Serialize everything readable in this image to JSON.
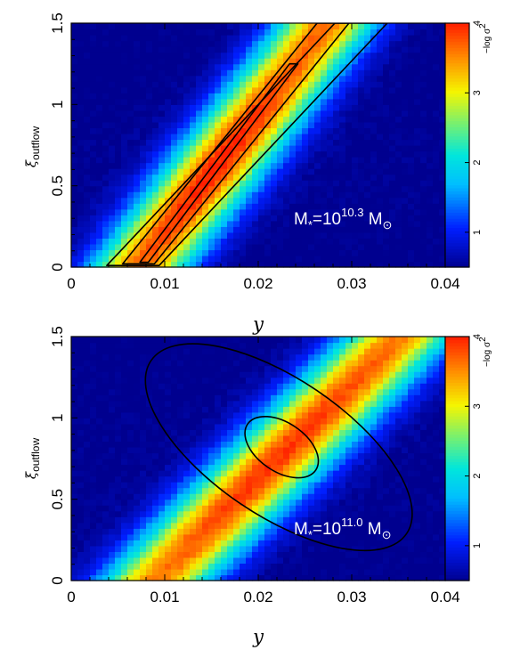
{
  "chart_data": [
    {
      "type": "heatmap",
      "xlabel": "y",
      "ylabel": "ξ",
      "ylabel_sub": "outflow",
      "xlim": [
        0,
        0.04
      ],
      "ylim": [
        0,
        1.5
      ],
      "x_ticks": [
        "0",
        "0.01",
        "0.02",
        "0.03",
        "0.04"
      ],
      "y_ticks": [
        "0",
        "0.5",
        "1",
        "1.5"
      ],
      "ridge": {
        "points": [
          [
            0.0075,
            0.02
          ],
          [
            0.024,
            1.25
          ]
        ],
        "width_x": 0.004,
        "peak": 4.0
      },
      "contours": [
        {
          "points": [
            [
              0.0078,
              0.03
            ],
            [
              0.0238,
              1.25
            ]
          ],
          "half_width_x": 0.00045
        },
        {
          "points": [
            [
              0.0072,
              0.02
            ],
            [
              0.028,
              1.5
            ]
          ],
          "half_width_x": 0.0017
        },
        {
          "points": [
            [
              0.0066,
              0.01
            ],
            [
              0.031,
              1.5
            ]
          ],
          "half_width_x": 0.0028
        }
      ],
      "annotation": {
        "prefix": "M",
        "sub": "*",
        "mid": "=10",
        "exp": "10.3",
        "unit": " M",
        "sun": "⊙"
      },
      "colorbar": {
        "title": "−log σ",
        "title_exp": "2",
        "range": [
          0.5,
          4.0
        ],
        "ticks": [
          "1",
          "2",
          "3",
          "4"
        ]
      }
    },
    {
      "type": "heatmap",
      "xlabel": "y",
      "ylabel": "ξ",
      "ylabel_sub": "outflow",
      "xlim": [
        0,
        0.04
      ],
      "ylim": [
        0,
        1.5
      ],
      "x_ticks": [
        "0",
        "0.01",
        "0.02",
        "0.03",
        "0.04"
      ],
      "y_ticks": [
        "0",
        "0.5",
        "1",
        "1.5"
      ],
      "ridge": {
        "points": [
          [
            0.009,
            0.0
          ],
          [
            0.035,
            1.5
          ]
        ],
        "width_x": 0.0045,
        "peak": 3.9
      },
      "contours": [
        {
          "center": [
            0.0225,
            0.82
          ],
          "semi_major": 0.25,
          "semi_minor": 0.008
        },
        {
          "center": [
            0.0222,
            0.82
          ],
          "semi_major": 0.7,
          "semi_minor": 0.03
        }
      ],
      "annotation": {
        "prefix": "M",
        "sub": "*",
        "mid": "=10",
        "exp": "11.0",
        "unit": " M",
        "sun": "⊙"
      },
      "colorbar": {
        "title": "−log σ",
        "title_exp": "2",
        "range": [
          0.5,
          4.0
        ],
        "ticks": [
          "1",
          "2",
          "3",
          "4"
        ]
      }
    }
  ],
  "colors": {
    "low": "#00008f",
    "mid": "#00d8ff",
    "high": "#ff2a00",
    "contour": "#000000",
    "annotation": "#ffffff"
  }
}
